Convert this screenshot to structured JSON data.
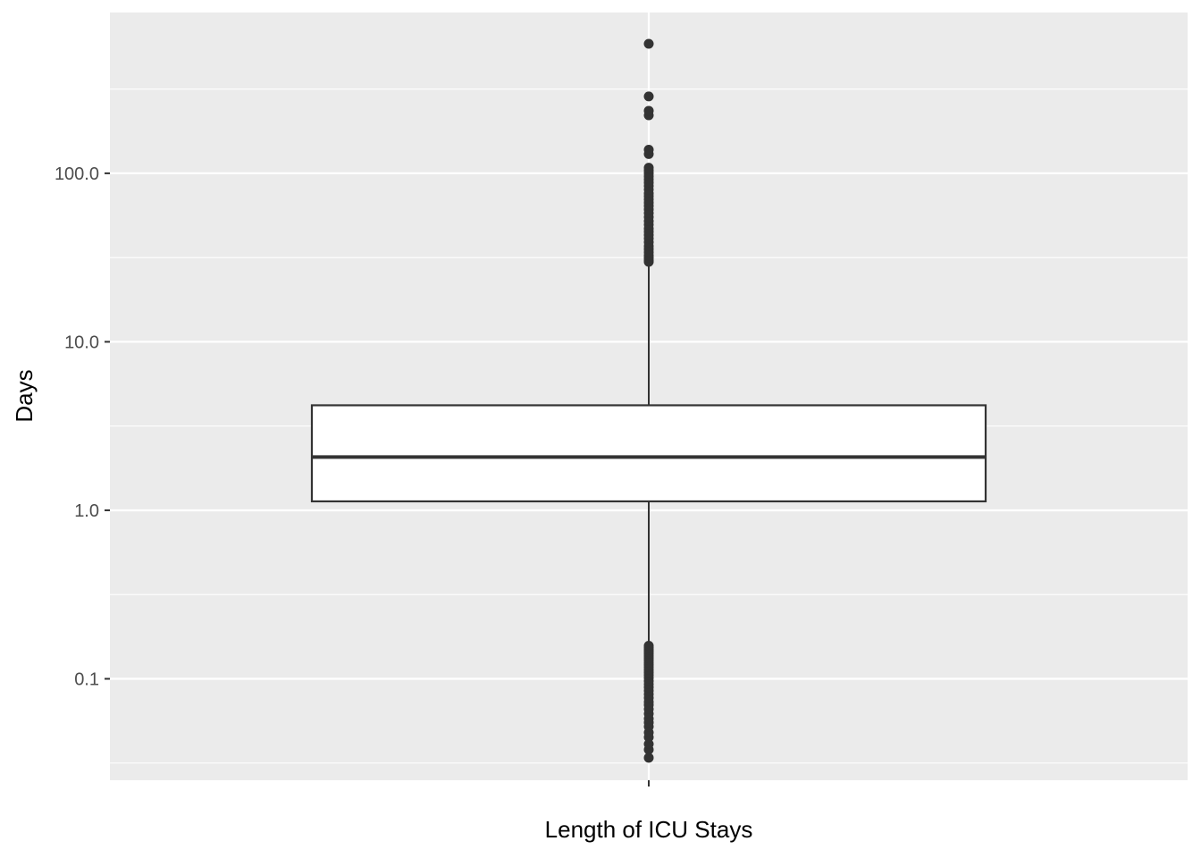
{
  "chart_data": {
    "type": "boxplot",
    "title": "",
    "xlabel": "Length of ICU Stays",
    "ylabel": "Days",
    "y_scale": "log10",
    "ylim": [
      0.025,
      900
    ],
    "y_ticks": [
      0.1,
      1.0,
      10.0,
      100.0
    ],
    "y_tick_labels": [
      "0.1",
      "1.0",
      "10.0",
      "100.0"
    ],
    "categories": [
      ""
    ],
    "grid": true,
    "legend": "none",
    "colors": {
      "panel": "#ebebeb",
      "grid": "#ffffff",
      "box_fill": "#ffffff",
      "stroke": "#333333"
    },
    "box": {
      "q1": 1.13,
      "median": 2.07,
      "q3": 4.2,
      "whisker_low": 0.16,
      "whisker_high": 29.5
    },
    "outliers": [
      0.034,
      0.038,
      0.041,
      0.045,
      0.048,
      0.052,
      0.055,
      0.058,
      0.062,
      0.066,
      0.07,
      0.073,
      0.077,
      0.081,
      0.085,
      0.089,
      0.093,
      0.097,
      0.101,
      0.105,
      0.109,
      0.113,
      0.117,
      0.121,
      0.125,
      0.129,
      0.133,
      0.137,
      0.141,
      0.145,
      0.149,
      0.153,
      0.157,
      29.8,
      30.5,
      31.5,
      32.5,
      34,
      35.5,
      37,
      39,
      41,
      43,
      45,
      47,
      49.5,
      52,
      55,
      58,
      61,
      64,
      67,
      70,
      73,
      76,
      80,
      84,
      88,
      92,
      96,
      100,
      104,
      108,
      130,
      138,
      221,
      235,
      286,
      587
    ]
  }
}
